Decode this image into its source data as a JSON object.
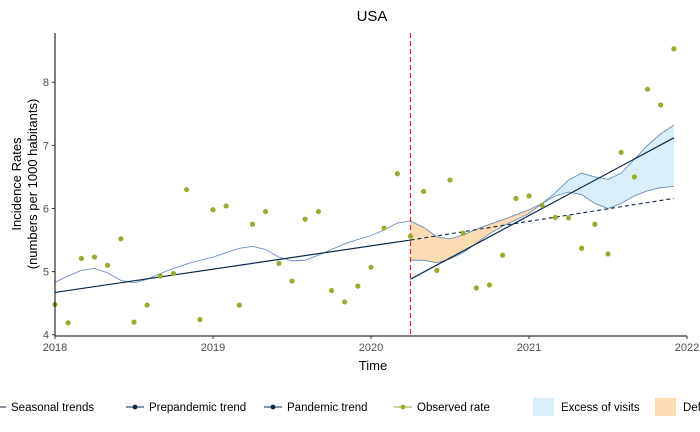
{
  "chart_data": {
    "type": "line",
    "title": "USA",
    "xlabel": "Time",
    "ylabel_line1": "Incidence Rates",
    "ylabel_line2": "(numbers per 1000 habitants)",
    "xlim": [
      2018.0,
      2022.0
    ],
    "ylim": [
      3.98,
      8.78
    ],
    "x_ticks": [
      2018,
      2019,
      2020,
      2021,
      2022
    ],
    "x_tick_labels": [
      "2018",
      "2019",
      "2020",
      "2021",
      "2022"
    ],
    "y_ticks": [
      4,
      5,
      6,
      7,
      8
    ],
    "y_tick_labels": [
      "4",
      "5",
      "6",
      "7",
      "8"
    ],
    "grid": false,
    "legend_position": "bottom",
    "pandemic_start": 2020.25,
    "colors": {
      "observed": "#9aab2e",
      "seasonal": "#6c8ebf",
      "trend": "#0b2a4a",
      "vline": "#e0202a",
      "excess_fill": "#d9eef8",
      "deficit_fill": "#fcdcb0"
    },
    "legend": [
      {
        "label": "Seasonal trends",
        "kind": "line-point",
        "color": "#0b2a4a"
      },
      {
        "label": "Prepandemic trend",
        "kind": "line-point",
        "color": "#0b2a4a"
      },
      {
        "label": "Pandemic trend",
        "kind": "line-point",
        "color": "#0b2a4a"
      },
      {
        "label": "Observed rate",
        "kind": "line-point",
        "color": "#9aab2e"
      },
      {
        "label": "Excess of visits",
        "kind": "fill",
        "color": "#d9eef8"
      },
      {
        "label": "Deficit of visits",
        "kind": "fill",
        "color": "#fcdcb0"
      }
    ],
    "series": [
      {
        "name": "Observed rate",
        "x": [
          2018.0,
          2018.083,
          2018.167,
          2018.25,
          2018.333,
          2018.417,
          2018.5,
          2018.583,
          2018.667,
          2018.75,
          2018.833,
          2018.917,
          2019.0,
          2019.083,
          2019.167,
          2019.25,
          2019.333,
          2019.417,
          2019.5,
          2019.583,
          2019.667,
          2019.75,
          2019.833,
          2019.917,
          2020.0,
          2020.083,
          2020.167,
          2020.25,
          2020.333,
          2020.417,
          2020.5,
          2020.583,
          2020.667,
          2020.75,
          2020.833,
          2020.917,
          2021.0,
          2021.083,
          2021.167,
          2021.25,
          2021.333,
          2021.417,
          2021.5,
          2021.583,
          2021.667,
          2021.75,
          2021.833,
          2021.917
        ],
        "y": [
          4.48,
          4.19,
          5.21,
          5.23,
          5.1,
          5.52,
          4.2,
          4.47,
          4.93,
          4.97,
          6.3,
          4.24,
          5.98,
          6.04,
          4.47,
          5.75,
          5.95,
          5.13,
          4.85,
          5.83,
          5.95,
          4.7,
          4.52,
          4.77,
          5.07,
          5.69,
          6.55,
          5.56,
          6.27,
          5.02,
          6.45,
          5.61,
          4.74,
          4.79,
          5.26,
          6.16,
          6.2,
          6.05,
          5.86,
          5.85,
          5.37,
          5.75,
          5.28,
          6.89,
          6.5,
          7.89,
          7.64,
          8.53
        ]
      },
      {
        "name": "Seasonal trends",
        "x": [
          2018.0,
          2018.083,
          2018.167,
          2018.25,
          2018.333,
          2018.417,
          2018.5,
          2018.583,
          2018.667,
          2018.75,
          2018.833,
          2018.917,
          2019.0,
          2019.083,
          2019.167,
          2019.25,
          2019.333,
          2019.417,
          2019.5,
          2019.583,
          2019.667,
          2019.75,
          2019.833,
          2019.917,
          2020.0,
          2020.083,
          2020.167,
          2020.25,
          2020.333,
          2020.417,
          2020.5,
          2020.583,
          2020.667,
          2020.75,
          2020.833,
          2020.917,
          2021.0,
          2021.083,
          2021.167,
          2021.25,
          2021.333,
          2021.417,
          2021.5,
          2021.583,
          2021.667,
          2021.75,
          2021.833,
          2021.917
        ],
        "y": [
          4.83,
          4.93,
          5.02,
          5.05,
          4.98,
          4.86,
          4.82,
          4.88,
          4.97,
          5.05,
          5.12,
          5.18,
          5.23,
          5.3,
          5.37,
          5.4,
          5.35,
          5.23,
          5.17,
          5.18,
          5.26,
          5.35,
          5.44,
          5.51,
          5.57,
          5.66,
          5.77,
          5.8,
          5.7,
          5.55,
          5.52,
          5.58,
          5.67,
          5.75,
          5.82,
          5.9,
          5.98,
          6.08,
          6.2,
          6.26,
          6.22,
          6.08,
          6.0,
          6.08,
          6.2,
          6.28,
          6.33,
          6.35
        ]
      },
      {
        "name": "Seasonal trends (pandemic)",
        "x": [
          2020.25,
          2020.333,
          2020.417,
          2020.5,
          2020.583,
          2020.667,
          2020.75,
          2020.833,
          2020.917,
          2021.0,
          2021.083,
          2021.167,
          2021.25,
          2021.333,
          2021.417,
          2021.5,
          2021.583,
          2021.667,
          2021.75,
          2021.833,
          2021.917
        ],
        "y": [
          5.18,
          5.18,
          5.14,
          5.2,
          5.3,
          5.45,
          5.6,
          5.72,
          5.82,
          5.92,
          6.08,
          6.25,
          6.45,
          6.56,
          6.5,
          6.46,
          6.56,
          6.78,
          7.0,
          7.18,
          7.32
        ]
      },
      {
        "name": "Prepandemic trend",
        "x": [
          2018.0,
          2020.25
        ],
        "y": [
          4.67,
          5.5
        ]
      },
      {
        "name": "Prepandemic trend (projected)",
        "x": [
          2020.25,
          2021.917
        ],
        "y": [
          5.5,
          6.16
        ]
      },
      {
        "name": "Pandemic trend",
        "x": [
          2020.25,
          2021.917
        ],
        "y": [
          4.88,
          7.12
        ]
      }
    ]
  }
}
